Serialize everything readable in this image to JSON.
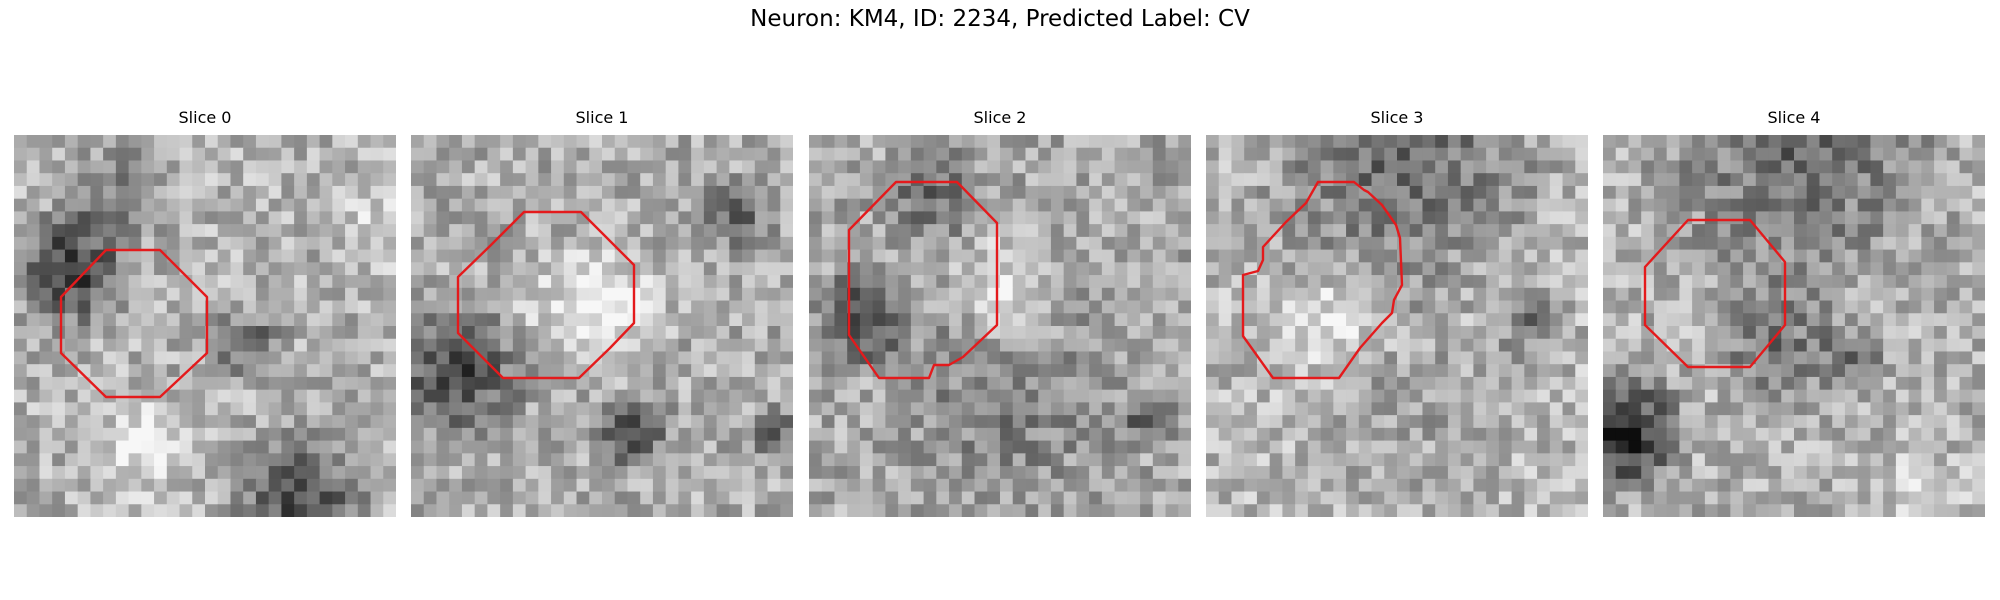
{
  "figure": {
    "title": "Neuron: KM4, ID: 2234, Predicted Label: CV",
    "contour_color": "#e41a1c"
  },
  "panels": [
    {
      "title": "Slice 0"
    },
    {
      "title": "Slice 1"
    },
    {
      "title": "Slice 2"
    },
    {
      "title": "Slice 3"
    },
    {
      "title": "Slice 4"
    }
  ]
}
